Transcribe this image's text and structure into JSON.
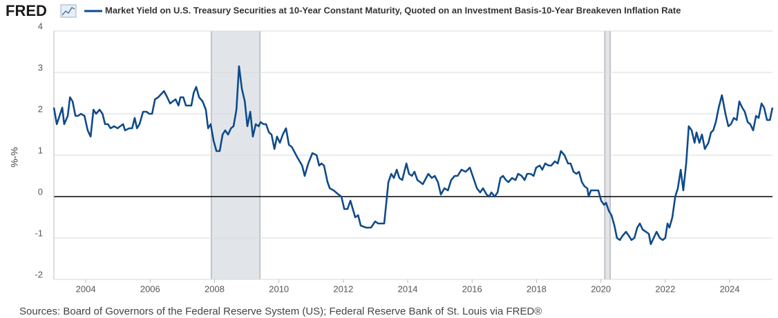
{
  "logo": "FRED",
  "source": "Sources: Board of Governors of the Federal Reserve System (US); Federal Reserve Bank of St. Louis via FRED®",
  "chart_data": {
    "type": "line",
    "ylabel": "%-%",
    "series": [
      {
        "name": "Market Yield on U.S. Treasury Securities at 10-Year Constant Maturity, Quoted on an Investment Basis-10-Year Breakeven Inflation Rate",
        "color": "#0f4a8a",
        "x": [
          2003.01,
          2003.1,
          2003.27,
          2003.33,
          2003.44,
          2003.51,
          2003.59,
          2003.68,
          2003.76,
          2003.85,
          2003.96,
          2004.06,
          2004.15,
          2004.24,
          2004.32,
          2004.43,
          2004.52,
          2004.6,
          2004.69,
          2004.77,
          2004.88,
          2004.99,
          2005.07,
          2005.16,
          2005.22,
          2005.35,
          2005.44,
          2005.52,
          2005.59,
          2005.67,
          2005.78,
          2005.89,
          2005.97,
          2006.06,
          2006.15,
          2006.25,
          2006.43,
          2006.53,
          2006.62,
          2006.7,
          2006.79,
          2006.88,
          2006.94,
          2007.03,
          2007.11,
          2007.28,
          2007.35,
          2007.43,
          2007.52,
          2007.63,
          2007.73,
          2007.8,
          2007.88,
          2007.97,
          2008.06,
          2008.16,
          2008.25,
          2008.33,
          2008.42,
          2008.51,
          2008.59,
          2008.68,
          2008.76,
          2008.85,
          2008.94,
          2009.02,
          2009.11,
          2009.19,
          2009.28,
          2009.37,
          2009.43,
          2009.52,
          2009.6,
          2009.69,
          2009.77,
          2009.86,
          2009.94,
          2010.03,
          2010.12,
          2010.22,
          2010.31,
          2010.4,
          2010.57,
          2010.72,
          2010.8,
          2010.91,
          2011.04,
          2011.17,
          2011.25,
          2011.32,
          2011.4,
          2011.51,
          2011.58,
          2011.7,
          2011.85,
          2011.94,
          2012.03,
          2012.13,
          2012.22,
          2012.37,
          2012.46,
          2012.54,
          2012.71,
          2012.86,
          2012.99,
          2013.08,
          2013.27,
          2013.4,
          2013.49,
          2013.57,
          2013.66,
          2013.74,
          2013.83,
          2013.96,
          2014.04,
          2014.13,
          2014.21,
          2014.3,
          2014.39,
          2014.47,
          2014.64,
          2014.75,
          2014.84,
          2014.94,
          2015.03,
          2015.14,
          2015.25,
          2015.35,
          2015.46,
          2015.55,
          2015.67,
          2015.8,
          2015.93,
          2016.04,
          2016.15,
          2016.25,
          2016.34,
          2016.45,
          2016.53,
          2016.6,
          2016.7,
          2016.79,
          2016.88,
          2016.96,
          2017.05,
          2017.13,
          2017.24,
          2017.35,
          2017.43,
          2017.54,
          2017.63,
          2017.71,
          2017.82,
          2017.91,
          2017.99,
          2018.1,
          2018.18,
          2018.27,
          2018.38,
          2018.46,
          2018.57,
          2018.66,
          2018.76,
          2018.87,
          2018.98,
          2019.06,
          2019.15,
          2019.24,
          2019.32,
          2019.41,
          2019.49,
          2019.58,
          2019.62,
          2019.69,
          2019.79,
          2019.92,
          2020.01,
          2020.1,
          2020.16,
          2020.25,
          2020.33,
          2020.42,
          2020.5,
          2020.59,
          2020.67,
          2020.78,
          2020.87,
          2020.95,
          2021.04,
          2021.13,
          2021.21,
          2021.3,
          2021.4,
          2021.49,
          2021.55,
          2021.64,
          2021.73,
          2021.83,
          2021.92,
          2022.0,
          2022.07,
          2022.13,
          2022.22,
          2022.31,
          2022.39,
          2022.48,
          2022.56,
          2022.65,
          2022.73,
          2022.82,
          2022.91,
          2022.97,
          2023.06,
          2023.14,
          2023.23,
          2023.34,
          2023.42,
          2023.49,
          2023.57,
          2023.66,
          2023.76,
          2023.87,
          2023.96,
          2024.04,
          2024.13,
          2024.22,
          2024.3,
          2024.39,
          2024.47,
          2024.56,
          2024.64,
          2024.73,
          2024.82,
          2024.9,
          2024.99,
          2025.07,
          2025.16,
          2025.25,
          2025.33
        ],
        "values": [
          2.15,
          1.75,
          2.15,
          1.75,
          1.95,
          2.4,
          2.3,
          1.95,
          1.95,
          2.0,
          1.95,
          1.6,
          1.45,
          2.1,
          2.0,
          2.1,
          2.0,
          1.75,
          1.75,
          1.65,
          1.7,
          1.65,
          1.7,
          1.75,
          1.6,
          1.65,
          1.65,
          1.9,
          1.65,
          1.75,
          2.05,
          2.05,
          2.0,
          2.0,
          2.35,
          2.4,
          2.55,
          2.4,
          2.25,
          2.3,
          2.35,
          2.2,
          2.4,
          2.4,
          2.2,
          2.2,
          2.5,
          2.65,
          2.4,
          2.3,
          2.1,
          1.65,
          1.75,
          1.35,
          1.1,
          1.1,
          1.5,
          1.6,
          1.5,
          1.65,
          1.7,
          2.1,
          3.15,
          2.6,
          2.3,
          1.7,
          2.05,
          1.45,
          1.75,
          1.7,
          1.8,
          1.75,
          1.75,
          1.55,
          1.5,
          1.15,
          1.45,
          1.3,
          1.5,
          1.65,
          1.25,
          1.2,
          0.95,
          0.75,
          0.5,
          0.8,
          1.05,
          1.0,
          0.75,
          0.8,
          0.75,
          0.35,
          0.2,
          0.15,
          0.05,
          0.0,
          -0.3,
          -0.3,
          -0.1,
          -0.5,
          -0.45,
          -0.7,
          -0.75,
          -0.75,
          -0.6,
          -0.65,
          -0.65,
          0.35,
          0.55,
          0.45,
          0.65,
          0.45,
          0.4,
          0.8,
          0.55,
          0.5,
          0.6,
          0.4,
          0.35,
          0.3,
          0.55,
          0.45,
          0.5,
          0.35,
          0.05,
          0.2,
          0.15,
          0.4,
          0.5,
          0.5,
          0.65,
          0.6,
          0.7,
          0.45,
          0.2,
          0.1,
          0.2,
          0.05,
          0.0,
          0.1,
          0.0,
          0.1,
          0.45,
          0.5,
          0.4,
          0.35,
          0.45,
          0.4,
          0.55,
          0.5,
          0.4,
          0.55,
          0.55,
          0.5,
          0.7,
          0.75,
          0.65,
          0.8,
          0.75,
          0.75,
          0.85,
          0.8,
          1.1,
          1.0,
          0.8,
          0.8,
          0.6,
          0.55,
          0.6,
          0.35,
          0.25,
          0.2,
          0.0,
          0.15,
          0.15,
          0.15,
          -0.1,
          -0.2,
          -0.15,
          -0.35,
          -0.45,
          -0.7,
          -1.0,
          -1.05,
          -0.95,
          -0.85,
          -0.95,
          -1.05,
          -1.0,
          -0.75,
          -0.65,
          -0.8,
          -0.85,
          -0.9,
          -1.15,
          -1.0,
          -0.85,
          -1.0,
          -1.05,
          -1.0,
          -0.65,
          -0.75,
          -0.5,
          0.0,
          0.2,
          0.65,
          0.15,
          0.8,
          1.7,
          1.6,
          1.3,
          1.55,
          1.3,
          1.5,
          1.15,
          1.3,
          1.55,
          1.6,
          1.8,
          2.15,
          2.45,
          2.0,
          1.7,
          1.75,
          1.9,
          1.85,
          2.3,
          2.15,
          2.05,
          1.8,
          1.75,
          1.6,
          1.95,
          1.9,
          2.25,
          2.15,
          1.85,
          1.85,
          2.15
        ]
      }
    ],
    "recessions": [
      [
        2007.9,
        2009.41
      ],
      [
        2020.12,
        2020.29
      ]
    ],
    "xlim": [
      2003.01,
      2025.33
    ],
    "xticks": [
      2004,
      2006,
      2008,
      2010,
      2012,
      2014,
      2016,
      2018,
      2020,
      2022,
      2024
    ],
    "ylim": [
      -2,
      4
    ],
    "yticks": [
      -2,
      -1,
      0,
      1,
      2,
      3,
      4
    ],
    "grid": true,
    "zero_line": true
  }
}
